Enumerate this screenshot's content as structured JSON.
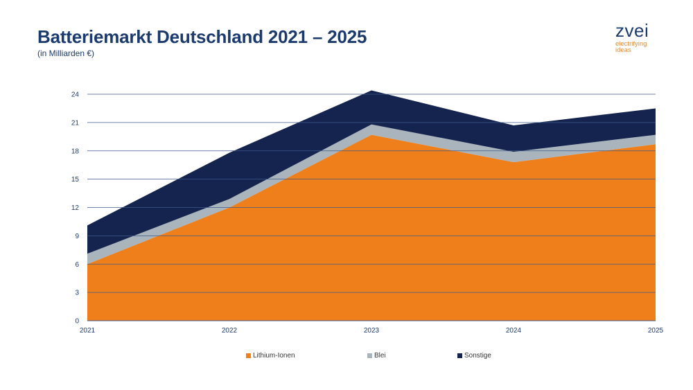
{
  "page": {
    "title": "Batteriemarkt Deutschland 2021 – 2025",
    "subtitle": "(in Milliarden €)",
    "logo": {
      "word": "zvei",
      "tagline": "electrifying ideas"
    }
  },
  "chart_data": {
    "type": "area",
    "stacked": true,
    "title": "Batteriemarkt Deutschland 2021 – 2025",
    "subtitle": "(in Milliarden €)",
    "x": [
      "2021",
      "2022",
      "2023",
      "2024",
      "2025"
    ],
    "yticks": [
      "0",
      "3",
      "6",
      "9",
      "12",
      "15",
      "18",
      "21",
      "24"
    ],
    "ylim": [
      0,
      24
    ],
    "grid": true,
    "legend": "bottom",
    "series": [
      {
        "name": "Lithium-Ionen",
        "color": "#ee7f1a",
        "values": [
          6.0,
          12.0,
          19.7,
          16.8,
          18.7
        ]
      },
      {
        "name": "Blei",
        "color": "#a9b4bd",
        "values": [
          1.1,
          0.9,
          1.1,
          1.1,
          1.0
        ]
      },
      {
        "name": "Sonstige",
        "color": "#15244f",
        "values": [
          3.0,
          4.9,
          3.6,
          2.8,
          2.8
        ]
      }
    ]
  }
}
